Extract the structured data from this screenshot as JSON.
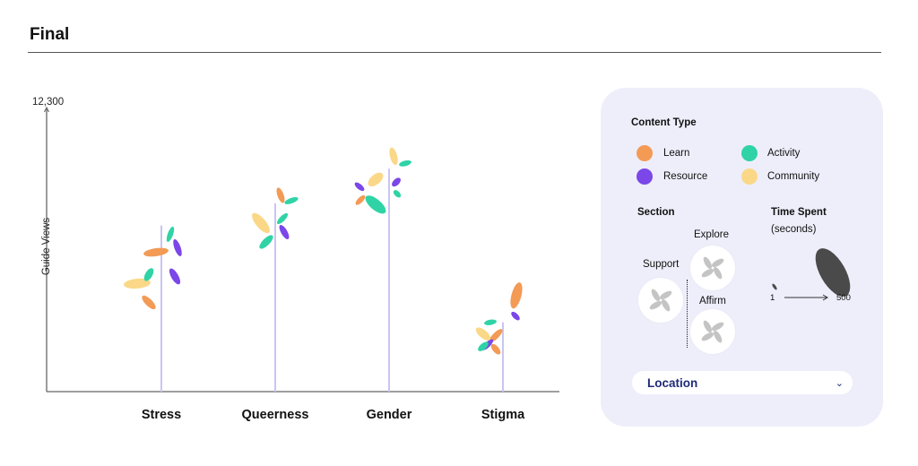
{
  "page": {
    "title": "Final"
  },
  "colors": {
    "learn": "#f39a55",
    "resource": "#7b47e8",
    "activity": "#2fd3a6",
    "community": "#fad888",
    "stem": "#c9c5f2",
    "axis": "#666666",
    "flower_petal": "#c4c4c4",
    "time_petal": "#4a4a4a"
  },
  "chart_data": {
    "type": "scatter",
    "title": "Final",
    "ylabel": "Guide Views",
    "xlabel": "",
    "y_max_label": "12,300",
    "ylim": [
      0,
      12300
    ],
    "categories": [
      "Stress",
      "Queerness",
      "Gender",
      "Stigma"
    ],
    "values": [
      7200,
      8150,
      9650,
      3000
    ],
    "legend": {
      "content_type_heading": "Content Type",
      "items": [
        {
          "name": "Learn",
          "color": "#f39a55"
        },
        {
          "name": "Activity",
          "color": "#2fd3a6"
        },
        {
          "name": "Resource",
          "color": "#7b47e8"
        },
        {
          "name": "Community",
          "color": "#fad888"
        }
      ],
      "section_heading": "Section",
      "sections": [
        "Explore",
        "Support",
        "Affirm"
      ],
      "time_heading": "Time Spent",
      "time_unit": "(seconds)",
      "time_min": "1",
      "time_max": "500"
    },
    "grid": false
  },
  "filter": {
    "label": "Location",
    "chevron": "⌄"
  }
}
